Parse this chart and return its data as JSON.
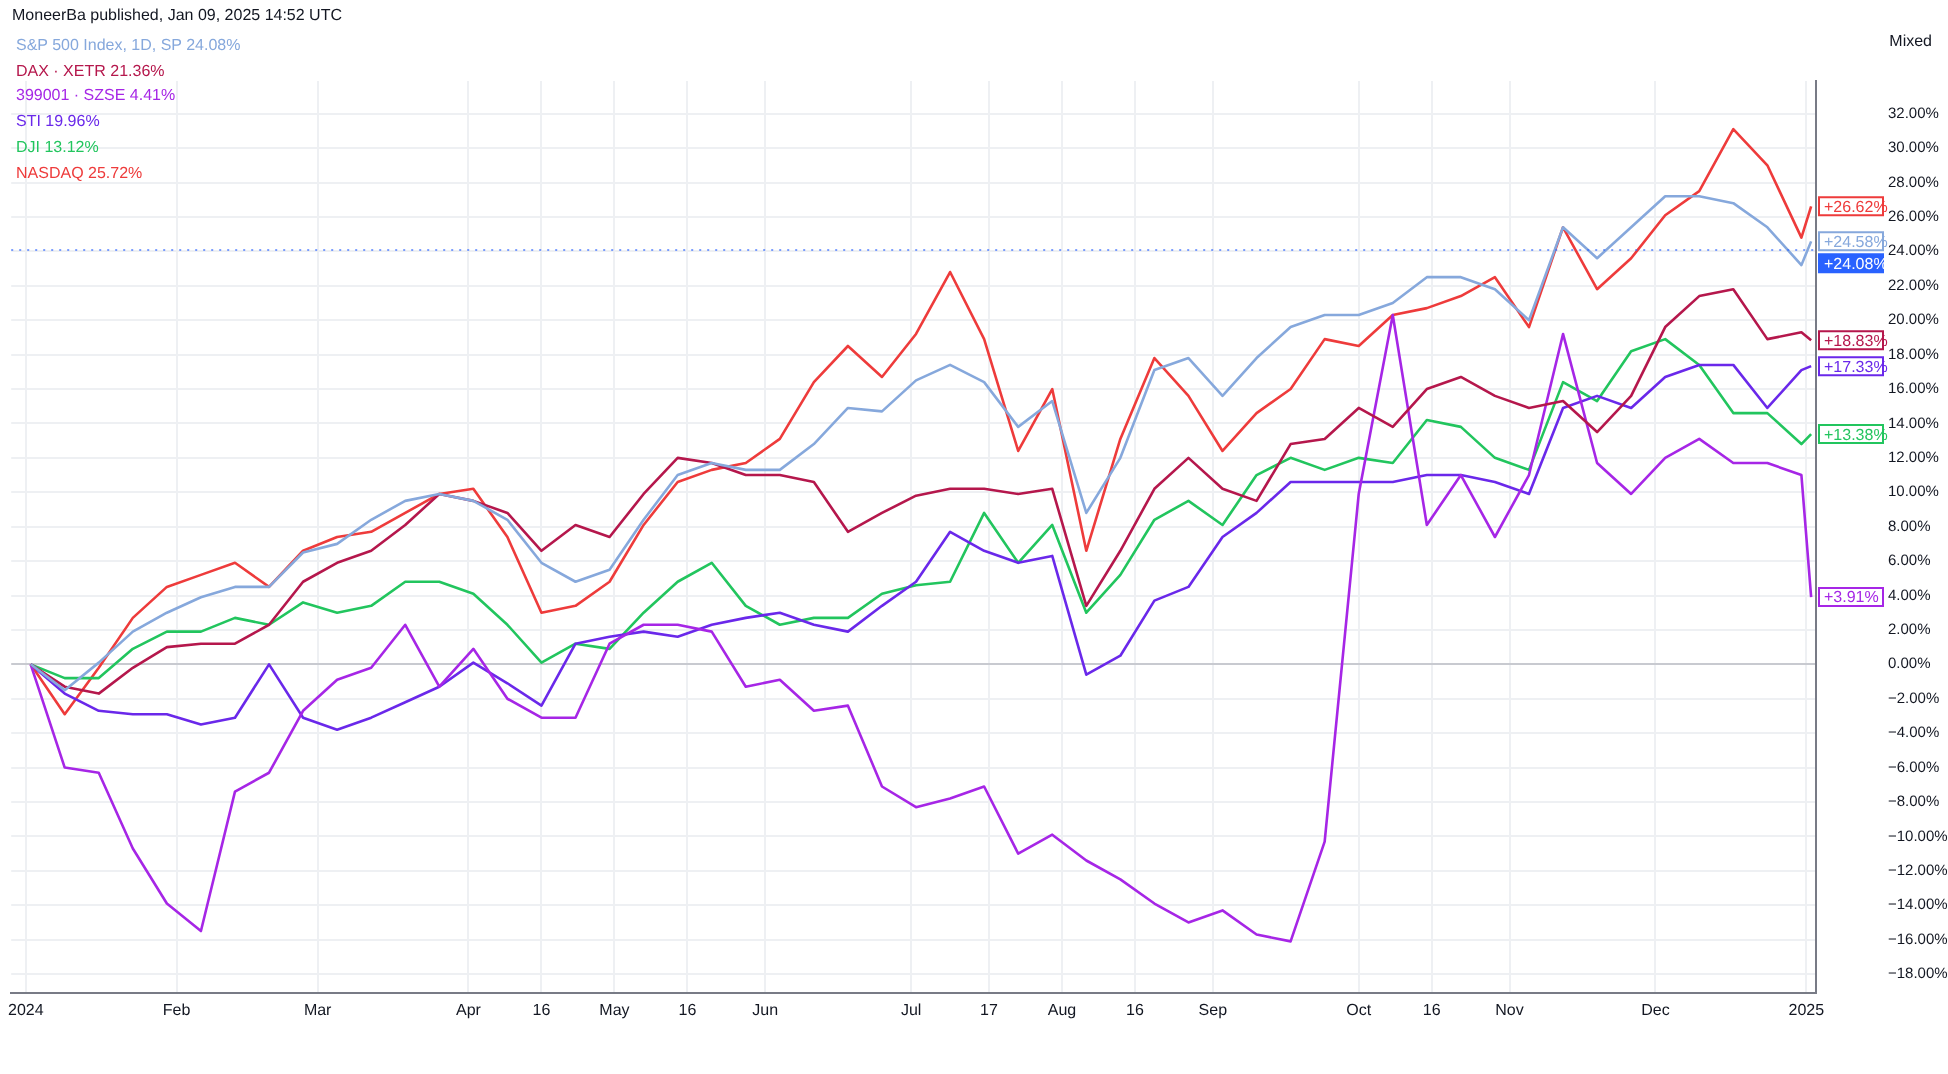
{
  "chart_data": {
    "type": "line",
    "title": "MoneerBa published, Jan 09, 2025 14:52 UTC",
    "annotations": [
      "Mixed"
    ],
    "x": [
      "2024-01-02",
      "2024-01-09",
      "2024-01-16",
      "2024-01-23",
      "2024-01-30",
      "2024-02-06",
      "2024-02-13",
      "2024-02-20",
      "2024-02-27",
      "2024-03-05",
      "2024-03-12",
      "2024-03-19",
      "2024-03-26",
      "2024-04-02",
      "2024-04-09",
      "2024-04-16",
      "2024-04-23",
      "2024-04-30",
      "2024-05-07",
      "2024-05-14",
      "2024-05-21",
      "2024-05-28",
      "2024-06-04",
      "2024-06-11",
      "2024-06-18",
      "2024-06-25",
      "2024-07-02",
      "2024-07-09",
      "2024-07-16",
      "2024-07-23",
      "2024-07-30",
      "2024-08-06",
      "2024-08-13",
      "2024-08-20",
      "2024-08-27",
      "2024-09-03",
      "2024-09-10",
      "2024-09-17",
      "2024-09-24",
      "2024-10-01",
      "2024-10-08",
      "2024-10-15",
      "2024-10-22",
      "2024-10-29",
      "2024-11-05",
      "2024-11-12",
      "2024-11-19",
      "2024-11-26",
      "2024-12-03",
      "2024-12-10",
      "2024-12-17",
      "2024-12-24",
      "2024-12-31",
      "2025-01-02"
    ],
    "series": [
      {
        "name": "S&P 500 Index, 1D, SP 24.08%",
        "color": "#86a8dc",
        "values": [
          0,
          -1.5,
          0.1,
          1.9,
          3.0,
          3.9,
          4.5,
          4.5,
          6.5,
          7.0,
          8.4,
          9.5,
          9.9,
          9.5,
          8.4,
          5.9,
          4.8,
          5.5,
          8.4,
          11.0,
          11.7,
          11.3,
          11.3,
          12.8,
          14.9,
          14.7,
          16.5,
          17.4,
          16.4,
          13.8,
          15.3,
          8.8,
          12.0,
          17.1,
          17.8,
          15.6,
          17.8,
          19.6,
          20.3,
          20.3,
          21.0,
          22.5,
          22.5,
          21.8,
          20.0,
          25.4,
          23.6,
          25.4,
          27.2,
          27.2,
          26.8,
          25.4,
          23.2,
          24.58
        ],
        "value_labels": [
          null,
          null,
          null,
          null,
          null,
          null,
          null,
          null,
          null,
          null,
          null,
          null,
          null,
          null,
          null,
          null,
          null,
          null,
          null,
          null,
          null,
          null,
          null,
          null,
          null,
          null,
          null,
          null,
          null,
          null,
          null,
          null,
          null,
          null,
          null,
          null,
          null,
          null,
          null,
          null,
          null,
          null,
          null,
          null,
          null,
          null,
          null,
          null,
          null,
          null,
          null,
          null,
          null,
          "+24.58%"
        ]
      },
      {
        "name": "DAX · XETR 21.36%",
        "color": "#b5174c",
        "values": [
          0,
          -1.3,
          -1.7,
          -0.2,
          1.0,
          1.2,
          1.2,
          2.3,
          4.8,
          5.9,
          6.6,
          8.1,
          9.9,
          9.5,
          8.8,
          6.6,
          8.1,
          7.4,
          9.9,
          12.0,
          11.7,
          11.0,
          11.0,
          10.6,
          7.7,
          8.8,
          9.8,
          10.2,
          10.2,
          9.9,
          10.2,
          3.4,
          6.6,
          10.2,
          12.0,
          10.2,
          9.5,
          12.8,
          13.1,
          14.9,
          13.8,
          16.0,
          16.7,
          15.6,
          14.9,
          15.3,
          13.5,
          15.6,
          19.6,
          21.4,
          21.8,
          18.9,
          19.3,
          18.83
        ],
        "value_labels": [
          null,
          null,
          null,
          null,
          null,
          null,
          null,
          null,
          null,
          null,
          null,
          null,
          null,
          null,
          null,
          null,
          null,
          null,
          null,
          null,
          null,
          null,
          null,
          null,
          null,
          null,
          null,
          null,
          null,
          null,
          null,
          null,
          null,
          null,
          null,
          null,
          null,
          null,
          null,
          null,
          null,
          null,
          null,
          null,
          null,
          null,
          null,
          null,
          null,
          null,
          null,
          null,
          null,
          "+18.83%"
        ]
      },
      {
        "name": "399001 · SZSE 4.41%",
        "color": "#a626e6",
        "values": [
          0,
          -6.0,
          -6.3,
          -10.7,
          -13.9,
          -15.5,
          -7.4,
          -6.3,
          -2.7,
          -0.9,
          -0.2,
          2.3,
          -1.3,
          0.9,
          -2.0,
          -3.1,
          -3.1,
          1.2,
          2.3,
          2.3,
          1.9,
          -1.3,
          -0.9,
          -2.7,
          -2.4,
          -7.1,
          -8.3,
          -7.8,
          -7.1,
          -11.0,
          -9.9,
          -11.4,
          -12.5,
          -13.9,
          -15.0,
          -14.3,
          -15.7,
          -16.1,
          -10.3,
          9.9,
          20.3,
          8.1,
          11.0,
          7.4,
          11.0,
          19.2,
          11.7,
          9.9,
          12.0,
          13.1,
          11.7,
          11.7,
          11.0,
          3.91
        ],
        "value_labels": [
          null,
          null,
          null,
          null,
          null,
          null,
          null,
          null,
          null,
          null,
          null,
          null,
          null,
          null,
          null,
          null,
          null,
          null,
          null,
          null,
          null,
          null,
          null,
          null,
          null,
          null,
          null,
          null,
          null,
          null,
          null,
          null,
          null,
          null,
          null,
          null,
          null,
          null,
          null,
          null,
          null,
          null,
          null,
          null,
          null,
          null,
          null,
          null,
          null,
          null,
          null,
          null,
          null,
          "+3.91%"
        ]
      },
      {
        "name": "STI 19.96%",
        "color": "#6a28ea",
        "values": [
          0,
          -1.7,
          -2.7,
          -2.9,
          -2.9,
          -3.5,
          -3.1,
          0.0,
          -3.1,
          -3.8,
          -3.1,
          -2.2,
          -1.3,
          0.1,
          -1.1,
          -2.4,
          1.2,
          1.6,
          1.9,
          1.6,
          2.3,
          2.7,
          3.0,
          2.3,
          1.9,
          3.4,
          4.8,
          7.7,
          6.6,
          5.9,
          6.3,
          -0.6,
          0.5,
          3.7,
          4.5,
          7.4,
          8.8,
          10.6,
          10.6,
          10.6,
          10.6,
          11.0,
          11.0,
          10.6,
          9.9,
          14.9,
          15.6,
          14.9,
          16.7,
          17.4,
          17.4,
          14.9,
          17.1,
          17.33
        ],
        "value_labels": [
          null,
          null,
          null,
          null,
          null,
          null,
          null,
          null,
          null,
          null,
          null,
          null,
          null,
          null,
          null,
          null,
          null,
          null,
          null,
          null,
          null,
          null,
          null,
          null,
          null,
          null,
          null,
          null,
          null,
          null,
          null,
          null,
          null,
          null,
          null,
          null,
          null,
          null,
          null,
          null,
          null,
          null,
          null,
          null,
          null,
          null,
          null,
          null,
          null,
          null,
          null,
          null,
          null,
          "+17.33%"
        ]
      },
      {
        "name": "DJI 13.12%",
        "color": "#22c55e",
        "values": [
          0,
          -0.8,
          -0.8,
          0.9,
          1.9,
          1.9,
          2.7,
          2.3,
          3.6,
          3.0,
          3.4,
          4.8,
          4.8,
          4.1,
          2.3,
          0.1,
          1.2,
          0.9,
          3.0,
          4.8,
          5.9,
          3.4,
          2.3,
          2.7,
          2.7,
          4.1,
          4.6,
          4.8,
          8.8,
          5.9,
          8.1,
          3.0,
          5.2,
          8.4,
          9.5,
          8.1,
          11.0,
          12.0,
          11.3,
          12.0,
          11.7,
          14.2,
          13.8,
          12.0,
          11.3,
          16.4,
          15.3,
          18.2,
          18.9,
          17.4,
          14.6,
          14.6,
          12.8,
          13.38
        ],
        "value_labels": [
          null,
          null,
          null,
          null,
          null,
          null,
          null,
          null,
          null,
          null,
          null,
          null,
          null,
          null,
          null,
          null,
          null,
          null,
          null,
          null,
          null,
          null,
          null,
          null,
          null,
          null,
          null,
          null,
          null,
          null,
          null,
          null,
          null,
          null,
          null,
          null,
          null,
          null,
          null,
          null,
          null,
          null,
          null,
          null,
          null,
          null,
          null,
          null,
          null,
          null,
          null,
          null,
          null,
          "+13.38%"
        ]
      },
      {
        "name": "NASDAQ 25.72%",
        "color": "#ee3b3b",
        "values": [
          0,
          -2.9,
          -0.2,
          2.7,
          4.5,
          5.2,
          5.9,
          4.5,
          6.6,
          7.4,
          7.7,
          8.8,
          9.9,
          10.2,
          7.4,
          3.0,
          3.4,
          4.8,
          8.1,
          10.6,
          11.3,
          11.7,
          13.1,
          16.4,
          18.5,
          16.7,
          19.2,
          22.8,
          18.9,
          12.4,
          16.0,
          6.6,
          13.1,
          17.8,
          15.6,
          12.4,
          14.6,
          16.0,
          18.9,
          18.5,
          20.3,
          20.7,
          21.4,
          22.5,
          19.6,
          25.4,
          21.8,
          23.6,
          26.1,
          27.5,
          31.1,
          29.0,
          24.8,
          26.62
        ],
        "value_labels": [
          null,
          null,
          null,
          null,
          null,
          null,
          null,
          null,
          null,
          null,
          null,
          null,
          null,
          null,
          null,
          null,
          null,
          null,
          null,
          null,
          null,
          null,
          null,
          null,
          null,
          null,
          null,
          null,
          null,
          null,
          null,
          null,
          null,
          null,
          null,
          null,
          null,
          null,
          null,
          null,
          null,
          null,
          null,
          null,
          null,
          null,
          null,
          null,
          null,
          null,
          null,
          null,
          null,
          "+26.62%"
        ]
      }
    ],
    "xlim": [
      "2023-12-29",
      "2025-01-03"
    ],
    "xticks": [
      {
        "value": "2024-01-01",
        "label": "2024"
      },
      {
        "value": "2024-02-01",
        "label": "Feb"
      },
      {
        "value": "2024-03-01",
        "label": "Mar"
      },
      {
        "value": "2024-04-01",
        "label": "Apr"
      },
      {
        "value": "2024-04-16",
        "label": "16"
      },
      {
        "value": "2024-05-01",
        "label": "May"
      },
      {
        "value": "2024-05-16",
        "label": "16"
      },
      {
        "value": "2024-06-01",
        "label": "Jun"
      },
      {
        "value": "2024-07-01",
        "label": "Jul"
      },
      {
        "value": "2024-07-17",
        "label": "17"
      },
      {
        "value": "2024-08-01",
        "label": "Aug"
      },
      {
        "value": "2024-08-16",
        "label": "16"
      },
      {
        "value": "2024-09-01",
        "label": "Sep"
      },
      {
        "value": "2024-10-01",
        "label": "Oct"
      },
      {
        "value": "2024-10-16",
        "label": "16"
      },
      {
        "value": "2024-11-01",
        "label": "Nov"
      },
      {
        "value": "2024-12-01",
        "label": "Dec"
      },
      {
        "value": "2025-01-01",
        "label": "2025"
      }
    ],
    "ylim": [
      -19.1,
      33.9
    ],
    "yticks": [
      {
        "value": -18,
        "label": "−18.00%"
      },
      {
        "value": -16,
        "label": "−16.00%"
      },
      {
        "value": -14,
        "label": "−14.00%"
      },
      {
        "value": -12,
        "label": "−12.00%"
      },
      {
        "value": -10,
        "label": "−10.00%"
      },
      {
        "value": -8,
        "label": "−8.00%"
      },
      {
        "value": -6,
        "label": "−6.00%"
      },
      {
        "value": -4,
        "label": "−4.00%"
      },
      {
        "value": -2,
        "label": "−2.00%"
      },
      {
        "value": 0,
        "label": "0.00%"
      },
      {
        "value": 2,
        "label": "2.00%"
      },
      {
        "value": 4,
        "label": "4.00%"
      },
      {
        "value": 6,
        "label": "6.00%"
      },
      {
        "value": 8,
        "label": "8.00%"
      },
      {
        "value": 10,
        "label": "10.00%"
      },
      {
        "value": 12,
        "label": "12.00%"
      },
      {
        "value": 14,
        "label": "14.00%"
      },
      {
        "value": 16,
        "label": "16.00%"
      },
      {
        "value": 18,
        "label": "18.00%"
      },
      {
        "value": 20,
        "label": "20.00%"
      },
      {
        "value": 22,
        "label": "22.00%"
      },
      {
        "value": 24,
        "label": "24.00%"
      },
      {
        "value": 26,
        "label": "26.00%"
      },
      {
        "value": 28,
        "label": "28.00%"
      },
      {
        "value": 30,
        "label": "30.00%"
      },
      {
        "value": 32,
        "label": "32.00%"
      }
    ],
    "ref_lines": [
      {
        "axis": "y",
        "value": 24.08,
        "label": "+24.08%",
        "color": "#2962ff",
        "line_style": "dotted"
      }
    ],
    "grid": true,
    "legend": "top left",
    "marker": "none",
    "line_style": "solid"
  }
}
